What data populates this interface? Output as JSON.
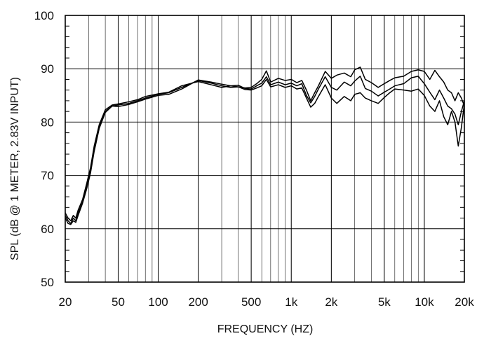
{
  "chart_data": {
    "type": "line",
    "title": "",
    "xlabel": "FREQUENCY  (HZ)",
    "ylabel": "SPL (dB @ 1 METER, 2.83V INPUT)",
    "xscale": "log",
    "xlim": [
      20,
      20000
    ],
    "ylim": [
      50,
      100
    ],
    "grid": true,
    "legend": "none",
    "line_color": "#000000",
    "x_ticks": [
      {
        "value": 20,
        "label": "20"
      },
      {
        "value": 50,
        "label": "50"
      },
      {
        "value": 100,
        "label": "100"
      },
      {
        "value": 200,
        "label": "200"
      },
      {
        "value": 500,
        "label": "500"
      },
      {
        "value": 1000,
        "label": "1k"
      },
      {
        "value": 2000,
        "label": "2k"
      },
      {
        "value": 5000,
        "label": "5k"
      },
      {
        "value": 10000,
        "label": "10k"
      },
      {
        "value": 20000,
        "label": "20k"
      }
    ],
    "y_ticks": [
      {
        "value": 50,
        "label": "50"
      },
      {
        "value": 60,
        "label": "60"
      },
      {
        "value": 70,
        "label": "70"
      },
      {
        "value": 80,
        "label": "80"
      },
      {
        "value": 90,
        "label": "90"
      },
      {
        "value": 100,
        "label": "100"
      }
    ],
    "series": [
      {
        "x": [
          20,
          21,
          22,
          23,
          24,
          25,
          27,
          29,
          31,
          33,
          36,
          40,
          45,
          50,
          60,
          70,
          80,
          100,
          120,
          150,
          200,
          250,
          300,
          350,
          400,
          450,
          500,
          550,
          600,
          650,
          700,
          800,
          900,
          1000,
          1100,
          1200,
          1300,
          1400,
          1500,
          1600,
          1800,
          2000,
          2200,
          2500,
          2800,
          3000,
          3300,
          3600,
          4000,
          4500,
          5000,
          5500,
          6000,
          7000,
          8000,
          9000,
          10000,
          11000,
          12000,
          13000,
          14000,
          15000,
          16000,
          17000,
          18000,
          19000,
          20000
        ],
        "y": [
          62.5,
          61.5,
          61,
          62,
          61.5,
          63,
          65,
          68,
          71,
          75,
          79,
          82,
          83,
          83.2,
          83.5,
          84,
          84.5,
          85.2,
          85.5,
          86.5,
          87.8,
          87.3,
          86.8,
          86.5,
          86.6,
          86.4,
          86.5,
          87.2,
          88,
          89.6,
          87.5,
          88.2,
          87.8,
          88,
          87.4,
          87.8,
          86,
          84,
          85.5,
          86.8,
          89.5,
          88.2,
          88.8,
          89.2,
          88.5,
          89.8,
          90.3,
          88,
          87.4,
          86.5,
          87.2,
          87.8,
          88.3,
          88.6,
          89.5,
          89.8,
          89.5,
          88,
          89.7,
          88.5,
          87.5,
          86,
          85.5,
          84,
          85.5,
          84.5,
          83
        ]
      },
      {
        "x": [
          20,
          21,
          22,
          23,
          24,
          25,
          27,
          29,
          31,
          33,
          36,
          40,
          45,
          50,
          60,
          70,
          80,
          100,
          120,
          150,
          200,
          250,
          300,
          350,
          400,
          450,
          500,
          550,
          600,
          650,
          700,
          800,
          900,
          1000,
          1100,
          1200,
          1300,
          1400,
          1500,
          1600,
          1800,
          2000,
          2200,
          2500,
          2800,
          3000,
          3300,
          3600,
          4000,
          4500,
          5000,
          5500,
          6000,
          7000,
          8000,
          9000,
          10000,
          11000,
          12000,
          13000,
          14000,
          15000,
          16000,
          17000,
          18000,
          19000,
          20000
        ],
        "y": [
          63,
          62,
          61.5,
          62.5,
          62,
          63.5,
          65.5,
          68.5,
          71.5,
          75.5,
          79.5,
          82.3,
          83.2,
          83.4,
          83.8,
          84.2,
          84.8,
          85.3,
          85.6,
          86.8,
          87.6,
          87,
          86.5,
          86.8,
          86.9,
          86.3,
          86.2,
          86.8,
          87.3,
          88.5,
          87,
          87.5,
          87,
          87.3,
          86.8,
          87.2,
          85,
          83.6,
          84.8,
          86.2,
          88.5,
          86.5,
          86,
          87.5,
          86.8,
          87.7,
          88.6,
          86.3,
          85.8,
          84.9,
          85.6,
          86.2,
          86.8,
          87.2,
          88.3,
          88.6,
          87.2,
          85.6,
          84.2,
          86,
          84.5,
          83,
          82.5,
          81.5,
          79.5,
          82,
          84
        ]
      },
      {
        "x": [
          20,
          21,
          22,
          23,
          24,
          25,
          27,
          29,
          31,
          33,
          36,
          40,
          45,
          50,
          60,
          70,
          80,
          100,
          120,
          150,
          200,
          250,
          300,
          350,
          400,
          450,
          500,
          550,
          600,
          650,
          700,
          800,
          900,
          1000,
          1100,
          1200,
          1300,
          1400,
          1500,
          1600,
          1800,
          2000,
          2200,
          2500,
          2800,
          3000,
          3300,
          3600,
          4000,
          4500,
          5000,
          5500,
          6000,
          7000,
          8000,
          9000,
          10000,
          11000,
          12000,
          13000,
          14000,
          15000,
          16000,
          17000,
          18000,
          19000,
          20000
        ],
        "y": [
          62,
          61,
          60.8,
          61.5,
          61.2,
          62.5,
          64.8,
          67.5,
          70.5,
          74.5,
          78.8,
          81.8,
          83,
          82.9,
          83.3,
          83.8,
          84.3,
          85,
          85.2,
          86.2,
          87.9,
          87.5,
          87.1,
          86.8,
          86.6,
          86.1,
          86,
          86.4,
          86.8,
          88,
          86.6,
          87,
          86.5,
          86.8,
          86.2,
          86.4,
          84.5,
          82.8,
          83.5,
          84.8,
          87,
          84.5,
          83.5,
          84.8,
          84,
          85.2,
          85.5,
          84.5,
          84,
          83.5,
          84.6,
          85.5,
          86.2,
          86,
          85.8,
          86.2,
          85,
          83,
          82,
          84,
          81,
          79.5,
          82,
          80,
          75.5,
          79,
          83.5
        ]
      }
    ]
  }
}
